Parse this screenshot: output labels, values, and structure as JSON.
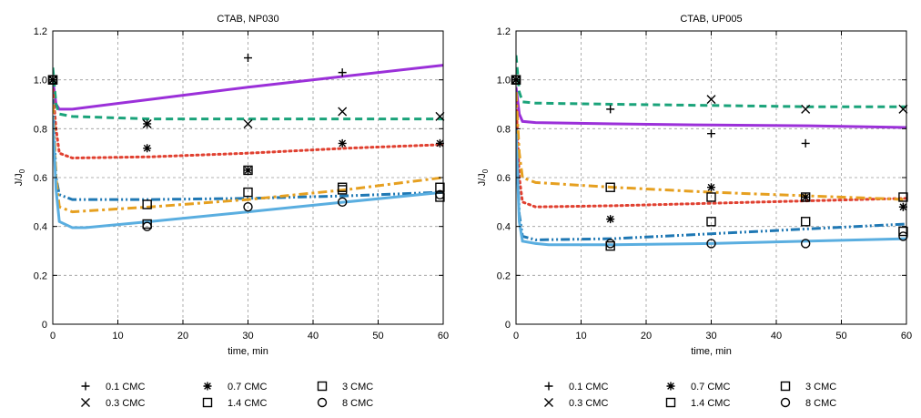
{
  "chart_data": [
    {
      "type": "line",
      "title": "CTAB, NP030",
      "xlabel": "time, min",
      "ylabel": "J/J",
      "ylabel_sub": "0",
      "xlim": [
        0,
        60
      ],
      "ylim": [
        0,
        1.2
      ],
      "x_ticks": [
        0,
        10,
        20,
        30,
        40,
        50,
        60
      ],
      "y_ticks": [
        0,
        0.2,
        0.4,
        0.6,
        0.8,
        1.0,
        1.2
      ],
      "y_tick_labels": [
        "0",
        "0.2",
        "0.4",
        "0.6",
        "0.8",
        "1.0",
        "1.2"
      ],
      "grid": true,
      "legend_position": "bottom",
      "series": [
        {
          "name": "0.1 CMC",
          "marker": "plus",
          "color": "#000000",
          "points": [
            [
              0,
              1.0
            ],
            [
              30,
              1.09
            ],
            [
              44.5,
              1.03
            ]
          ],
          "line_color": "#9b30d9",
          "line_style": "solid",
          "fit": [
            [
              0,
              1.0
            ],
            [
              0.5,
              0.9
            ],
            [
              1,
              0.88
            ],
            [
              3,
              0.88
            ],
            [
              15,
              0.92
            ],
            [
              30,
              0.97
            ],
            [
              45,
              1.015
            ],
            [
              60,
              1.06
            ]
          ]
        },
        {
          "name": "0.3 CMC",
          "marker": "x",
          "color": "#000000",
          "points": [
            [
              0,
              1.0
            ],
            [
              14.5,
              0.82
            ],
            [
              30,
              0.82
            ],
            [
              44.5,
              0.87
            ],
            [
              59.5,
              0.85
            ]
          ],
          "line_color": "#1aa37a",
          "line_style": "dashed",
          "fit": [
            [
              0,
              1.05
            ],
            [
              0.5,
              0.9
            ],
            [
              1,
              0.86
            ],
            [
              3,
              0.85
            ],
            [
              15,
              0.84
            ],
            [
              30,
              0.84
            ],
            [
              45,
              0.84
            ],
            [
              60,
              0.84
            ]
          ]
        },
        {
          "name": "0.7 CMC",
          "marker": "asterisk",
          "color": "#000000",
          "points": [
            [
              0,
              1.0
            ],
            [
              14.5,
              0.72
            ],
            [
              14.5,
              0.82
            ],
            [
              30,
              0.63
            ],
            [
              44.5,
              0.74
            ],
            [
              59.5,
              0.74
            ]
          ],
          "line_color": "#e04030",
          "line_style": "dotted",
          "fit": [
            [
              0,
              0.96
            ],
            [
              0.5,
              0.8
            ],
            [
              1,
              0.7
            ],
            [
              3,
              0.68
            ],
            [
              15,
              0.685
            ],
            [
              30,
              0.7
            ],
            [
              45,
              0.72
            ],
            [
              60,
              0.735
            ]
          ]
        },
        {
          "name": "1.4 CMC",
          "marker": "square",
          "color": "#000000",
          "points": [
            [
              0,
              1.0
            ],
            [
              14.5,
              0.41
            ],
            [
              30,
              0.63
            ],
            [
              44.5,
              0.55
            ],
            [
              59.5,
              0.52
            ]
          ],
          "line_color": "#1f78b4",
          "line_style": "dashdotdot",
          "fit": [
            [
              0,
              0.92
            ],
            [
              0.5,
              0.6
            ],
            [
              1,
              0.53
            ],
            [
              3,
              0.51
            ],
            [
              15,
              0.51
            ],
            [
              30,
              0.515
            ],
            [
              45,
              0.525
            ],
            [
              60,
              0.54
            ]
          ]
        },
        {
          "name": "3 CMC",
          "marker": "square",
          "color": "#000000",
          "points": [
            [
              0,
              1.0
            ],
            [
              14.5,
              0.49
            ],
            [
              30,
              0.54
            ],
            [
              44.5,
              0.56
            ],
            [
              59.5,
              0.56
            ]
          ],
          "line_color": "#e6a020",
          "line_style": "dashdot",
          "fit": [
            [
              0,
              0.9
            ],
            [
              0.5,
              0.6
            ],
            [
              1,
              0.48
            ],
            [
              3,
              0.46
            ],
            [
              15,
              0.48
            ],
            [
              30,
              0.51
            ],
            [
              45,
              0.55
            ],
            [
              60,
              0.6
            ]
          ]
        },
        {
          "name": "8 CMC",
          "marker": "circle",
          "color": "#000000",
          "points": [
            [
              0,
              1.0
            ],
            [
              14.5,
              0.4
            ],
            [
              30,
              0.48
            ],
            [
              44.5,
              0.5
            ],
            [
              59.5,
              0.53
            ]
          ],
          "line_color": "#5aaee0",
          "line_style": "solid",
          "fit": [
            [
              0,
              0.85
            ],
            [
              0.5,
              0.55
            ],
            [
              1,
              0.42
            ],
            [
              3,
              0.395
            ],
            [
              5,
              0.395
            ],
            [
              15,
              0.42
            ],
            [
              30,
              0.46
            ],
            [
              45,
              0.5
            ],
            [
              60,
              0.54
            ]
          ]
        }
      ]
    },
    {
      "type": "line",
      "title": "CTAB, UP005",
      "xlabel": "time, min",
      "ylabel": "J/J",
      "ylabel_sub": "0",
      "xlim": [
        0,
        60
      ],
      "ylim": [
        0,
        1.2
      ],
      "x_ticks": [
        0,
        10,
        20,
        30,
        40,
        50,
        60
      ],
      "y_ticks": [
        0,
        0.2,
        0.4,
        0.6,
        0.8,
        1.0,
        1.2
      ],
      "y_tick_labels": [
        "0",
        "0.2",
        "0.4",
        "0.6",
        "0.8",
        "1.0",
        "1.2"
      ],
      "grid": true,
      "legend_position": "bottom",
      "series": [
        {
          "name": "0.1 CMC",
          "marker": "plus",
          "color": "#000000",
          "points": [
            [
              0,
              1.0
            ],
            [
              14.5,
              0.88
            ],
            [
              30,
              0.78
            ],
            [
              44.5,
              0.74
            ],
            [
              59.5,
              0.48
            ]
          ],
          "line_color": "#9b30d9",
          "line_style": "solid",
          "fit": [
            [
              0,
              0.97
            ],
            [
              0.5,
              0.86
            ],
            [
              1,
              0.83
            ],
            [
              3,
              0.825
            ],
            [
              15,
              0.82
            ],
            [
              30,
              0.815
            ],
            [
              45,
              0.812
            ],
            [
              60,
              0.805
            ]
          ]
        },
        {
          "name": "0.3 CMC",
          "marker": "x",
          "color": "#000000",
          "points": [
            [
              0,
              1.0
            ],
            [
              30,
              0.92
            ],
            [
              44.5,
              0.88
            ],
            [
              59.5,
              0.88
            ]
          ],
          "line_color": "#1aa37a",
          "line_style": "dashed",
          "fit": [
            [
              0,
              1.1
            ],
            [
              0.5,
              0.95
            ],
            [
              1,
              0.91
            ],
            [
              3,
              0.905
            ],
            [
              15,
              0.9
            ],
            [
              30,
              0.895
            ],
            [
              45,
              0.89
            ],
            [
              60,
              0.89
            ]
          ]
        },
        {
          "name": "0.7 CMC",
          "marker": "asterisk",
          "color": "#000000",
          "points": [
            [
              0,
              1.0
            ],
            [
              14.5,
              0.43
            ],
            [
              30,
              0.56
            ],
            [
              44.5,
              0.52
            ],
            [
              59.5,
              0.48
            ]
          ],
          "line_color": "#e04030",
          "line_style": "dotted",
          "fit": [
            [
              0,
              0.92
            ],
            [
              0.5,
              0.6
            ],
            [
              1,
              0.5
            ],
            [
              3,
              0.48
            ],
            [
              15,
              0.485
            ],
            [
              30,
              0.495
            ],
            [
              45,
              0.505
            ],
            [
              60,
              0.515
            ]
          ]
        },
        {
          "name": "1.4 CMC",
          "marker": "square",
          "color": "#000000",
          "points": [
            [
              0,
              1.0
            ],
            [
              14.5,
              0.32
            ],
            [
              30,
              0.42
            ],
            [
              44.5,
              0.42
            ],
            [
              59.5,
              0.38
            ]
          ],
          "line_color": "#1f78b4",
          "line_style": "dashdotdot",
          "fit": [
            [
              0,
              0.8
            ],
            [
              0.5,
              0.45
            ],
            [
              1,
              0.36
            ],
            [
              3,
              0.345
            ],
            [
              15,
              0.35
            ],
            [
              30,
              0.37
            ],
            [
              45,
              0.39
            ],
            [
              60,
              0.41
            ]
          ]
        },
        {
          "name": "3 CMC",
          "marker": "square",
          "color": "#000000",
          "points": [
            [
              0,
              1.0
            ],
            [
              14.5,
              0.56
            ],
            [
              30,
              0.52
            ],
            [
              44.5,
              0.52
            ],
            [
              59.5,
              0.52
            ]
          ],
          "line_color": "#e6a020",
          "line_style": "dashdot",
          "fit": [
            [
              0,
              0.95
            ],
            [
              0.5,
              0.7
            ],
            [
              1,
              0.6
            ],
            [
              3,
              0.58
            ],
            [
              15,
              0.56
            ],
            [
              30,
              0.54
            ],
            [
              45,
              0.525
            ],
            [
              60,
              0.51
            ]
          ]
        },
        {
          "name": "8 CMC",
          "marker": "circle",
          "color": "#000000",
          "points": [
            [
              0,
              1.0
            ],
            [
              14.5,
              0.33
            ],
            [
              30,
              0.33
            ],
            [
              44.5,
              0.33
            ],
            [
              59.5,
              0.36
            ]
          ],
          "line_color": "#5aaee0",
          "line_style": "solid",
          "fit": [
            [
              0,
              0.78
            ],
            [
              0.5,
              0.42
            ],
            [
              1,
              0.34
            ],
            [
              3,
              0.33
            ],
            [
              5,
              0.325
            ],
            [
              15,
              0.325
            ],
            [
              30,
              0.33
            ],
            [
              45,
              0.34
            ],
            [
              60,
              0.35
            ]
          ]
        }
      ]
    }
  ]
}
